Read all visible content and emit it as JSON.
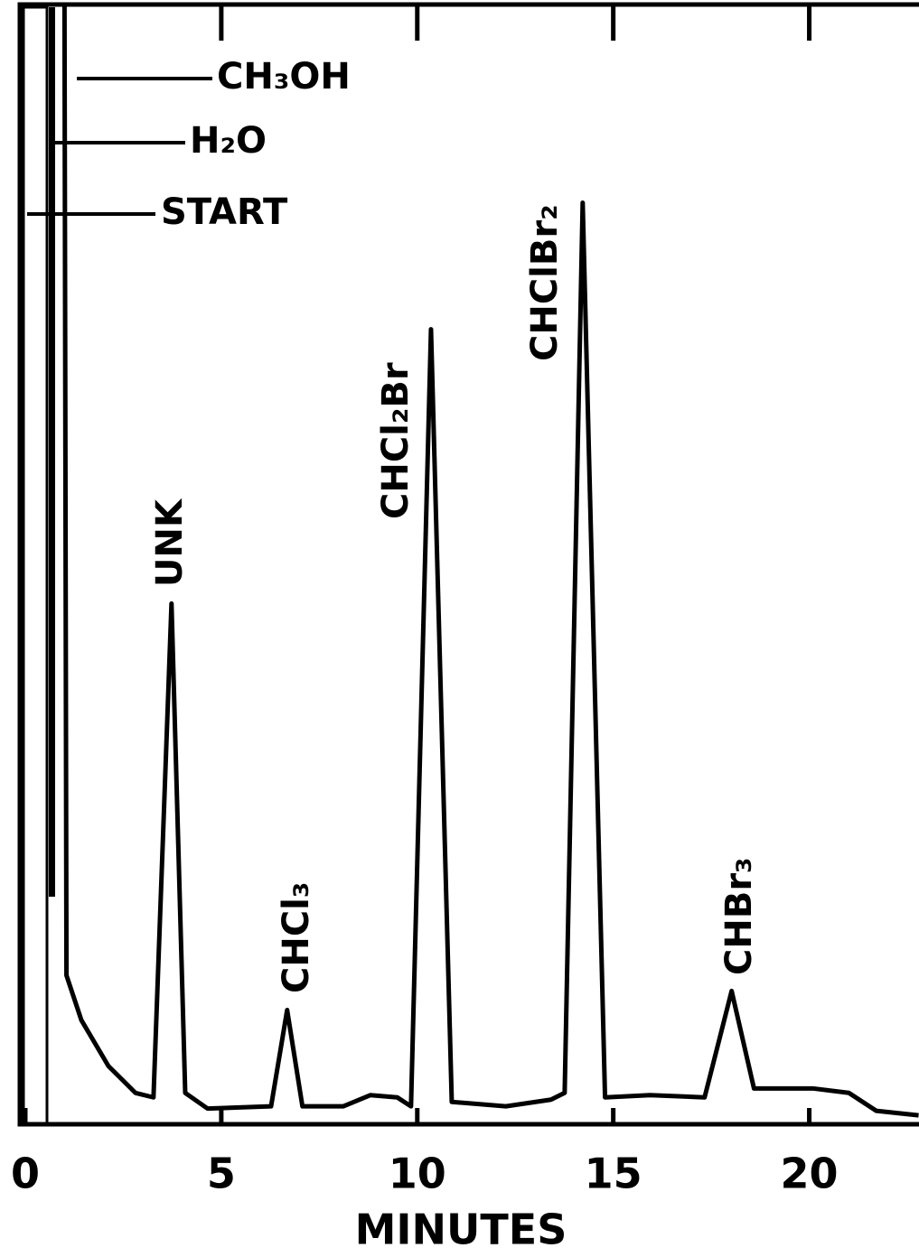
{
  "chart_data": {
    "type": "line",
    "x_label": "MINUTES",
    "x": [
      1.0,
      1.05,
      1.43,
      2.12,
      2.81,
      3.27,
      3.73,
      4.08,
      4.65,
      6.27,
      6.68,
      7.07,
      8.11,
      8.8,
      9.49,
      9.84,
      10.35,
      10.88,
      12.26,
      13.41,
      13.76,
      14.22,
      14.79,
      15.94,
      17.33,
      18.02,
      18.59,
      20.09,
      21.01,
      21.71,
      22.79
    ],
    "values": [
      100,
      13.3,
      9.3,
      5.2,
      2.8,
      2.4,
      46.5,
      2.8,
      1.4,
      1.6,
      10.2,
      1.6,
      1.6,
      2.6,
      2.4,
      1.6,
      71.0,
      2.0,
      1.6,
      2.2,
      2.8,
      82.3,
      2.4,
      2.6,
      2.4,
      11.9,
      3.2,
      3.2,
      2.8,
      1.2,
      0.8
    ],
    "color": "#000000",
    "xlim": [
      0,
      22.8
    ],
    "ylim": [
      0,
      100
    ],
    "xticks": [
      0,
      5,
      10,
      15,
      20
    ],
    "annotations": [
      "UNK",
      "CHCl₃",
      "CHCl₂Br",
      "CHClBr₂",
      "CHBr₃",
      "CH₃OH",
      "H₂O",
      "START"
    ]
  }
}
